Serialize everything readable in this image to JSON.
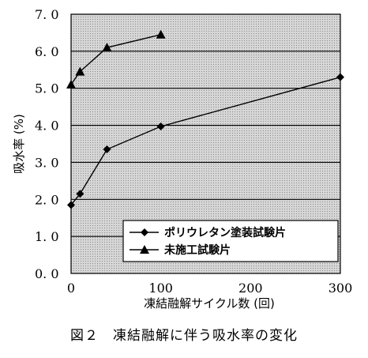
{
  "chart_data": {
    "type": "line",
    "xlabel": "凍結融解サイクル数 (回)",
    "ylabel": "吸水率 (%)",
    "xlim": [
      0,
      300
    ],
    "ylim": [
      0,
      7
    ],
    "x_ticks": [
      "0",
      "100",
      "200",
      "300"
    ],
    "y_ticks": [
      "0. 0",
      "1. 0",
      "2. 0",
      "3. 0",
      "4. 0",
      "5. 0",
      "6. 0",
      "7. 0"
    ],
    "grid": "horizontal",
    "legend_position": "bottom-right",
    "series": [
      {
        "name": "ポリウレタン塗装試験片",
        "marker": "diamond",
        "x": [
          0,
          10,
          40,
          100,
          300
        ],
        "y": [
          1.85,
          2.15,
          3.35,
          3.97,
          5.3
        ]
      },
      {
        "name": "未施工試験片",
        "marker": "triangle",
        "x": [
          0,
          10,
          40,
          100
        ],
        "y": [
          5.1,
          5.45,
          6.1,
          6.45
        ]
      }
    ]
  },
  "caption": "図２　凍結融解に伴う吸水率の変化"
}
